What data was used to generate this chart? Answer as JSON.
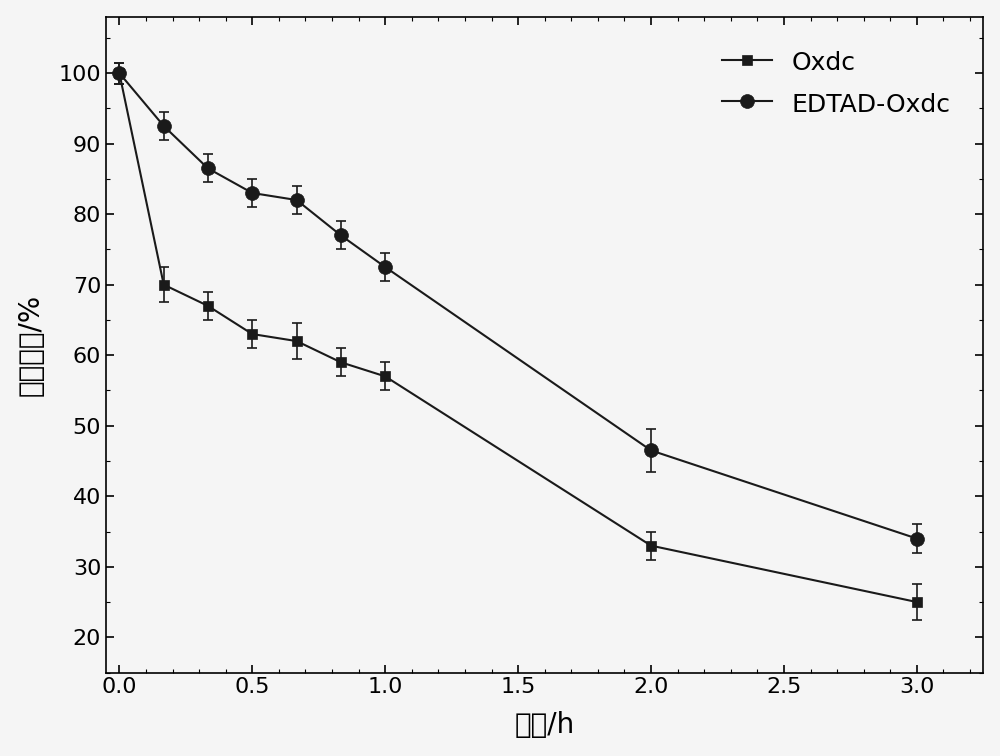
{
  "oxdc_x": [
    0.0,
    0.167,
    0.333,
    0.5,
    0.667,
    0.833,
    1.0,
    2.0,
    3.0
  ],
  "oxdc_y": [
    100,
    70,
    67,
    63,
    62,
    59,
    57,
    33,
    25
  ],
  "oxdc_yerr": [
    1.5,
    2.5,
    2.0,
    2.0,
    2.5,
    2.0,
    2.0,
    2.0,
    2.5
  ],
  "edtad_x": [
    0.0,
    0.167,
    0.333,
    0.5,
    0.667,
    0.833,
    1.0,
    2.0,
    3.0
  ],
  "edtad_y": [
    100,
    92.5,
    86.5,
    83,
    82,
    77,
    72.5,
    46.5,
    34
  ],
  "edtad_yerr": [
    1.5,
    2.0,
    2.0,
    2.0,
    2.0,
    2.0,
    2.0,
    3.0,
    2.0
  ],
  "xlabel": "时间/h",
  "ylabel": "相对酶活/%",
  "xlim": [
    -0.05,
    3.25
  ],
  "ylim": [
    15,
    108
  ],
  "xticks": [
    0.0,
    0.5,
    1.0,
    1.5,
    2.0,
    2.5,
    3.0
  ],
  "yticks": [
    20,
    30,
    40,
    50,
    60,
    70,
    80,
    90,
    100
  ],
  "line_color": "#1a1a1a",
  "legend_oxdc": "Oxdc",
  "legend_edtad": "EDTAD-Oxdc",
  "figsize": [
    10.0,
    7.56
  ],
  "dpi": 100,
  "fontsize_ticks": 16,
  "fontsize_labels": 20,
  "fontsize_legend": 18,
  "bg_color": "#f5f5f5"
}
